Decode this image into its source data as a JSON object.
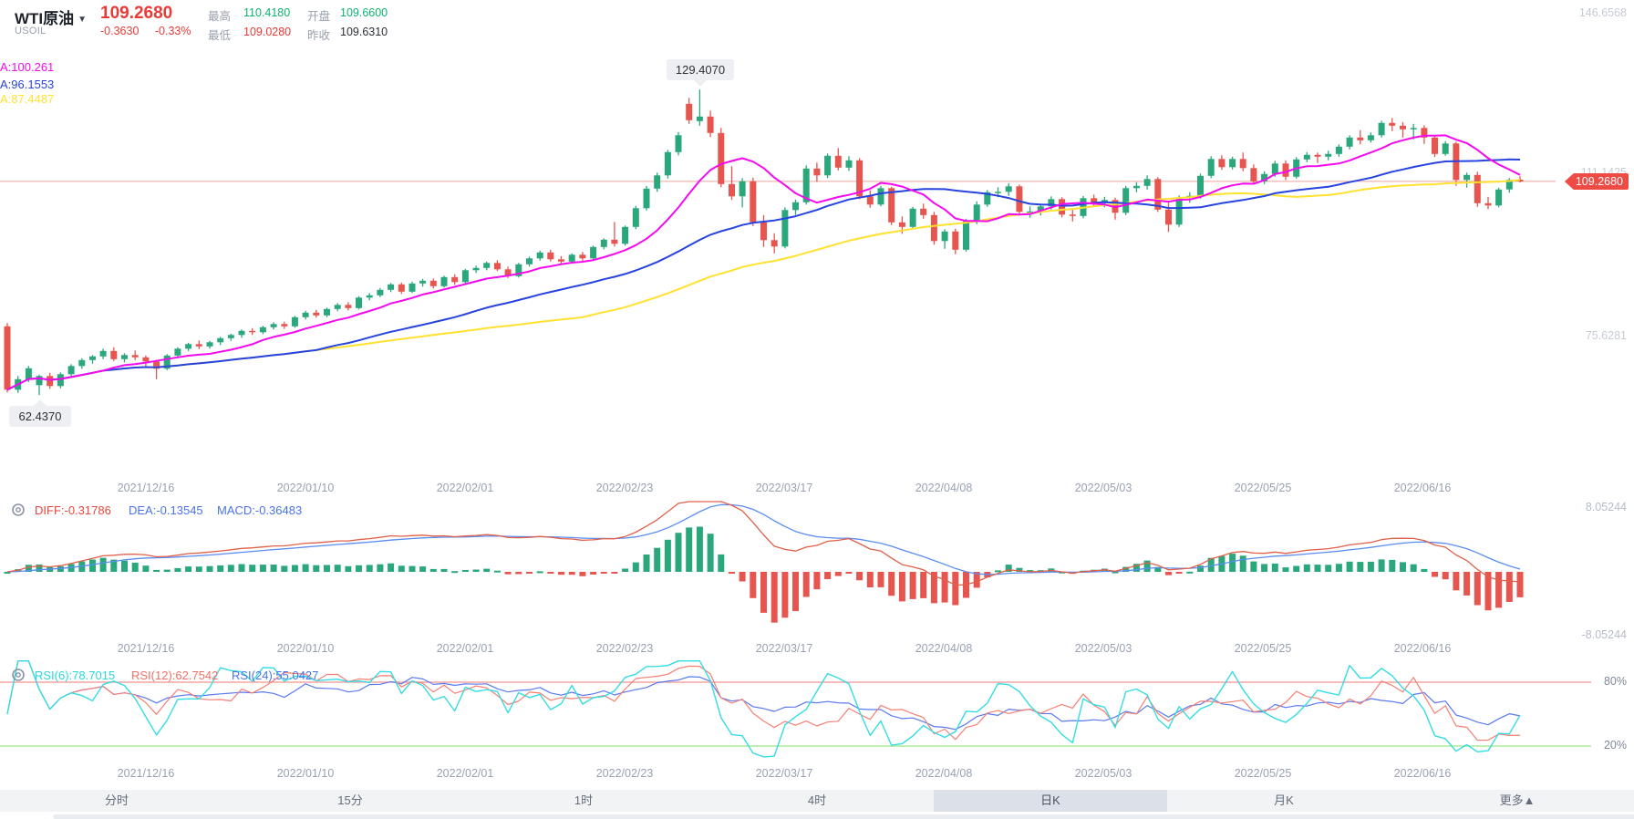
{
  "header": {
    "title": "WTI原油",
    "symbol": "USOIL",
    "price": "109.2680",
    "change": "-0.3630",
    "change_pct": "-0.33%",
    "stats": [
      {
        "label": "最高",
        "value": "110.4180",
        "tone": "green"
      },
      {
        "label": "最低",
        "value": "109.0280",
        "tone": "red"
      },
      {
        "label": "开盘",
        "value": "109.6600",
        "tone": "green"
      },
      {
        "label": "昨收",
        "value": "109.6310",
        "tone": "dark"
      }
    ]
  },
  "ma_labels": [
    {
      "text": "A:100.261",
      "color": "#f50af0"
    },
    {
      "text": "A:96.1553",
      "color": "#2743e0"
    },
    {
      "text": "A:87.4487",
      "color": "#ffe230"
    }
  ],
  "price_axis": {
    "top": "146.6568",
    "mid": "111.1425",
    "low": "75.6281",
    "badge": "109.2680"
  },
  "annotations": {
    "high": "129.4070",
    "low": "62.4370"
  },
  "macd_panel": {
    "diff_label": "DIFF:-0.31786",
    "dea_label": "DEA:-0.13545",
    "macd_label": "MACD:-0.36483",
    "axis_max": "8.05244",
    "axis_min": "-8.05244"
  },
  "rsi_panel": {
    "rsi6_label": "RSI(6):78.7015",
    "rsi12_label": "RSI(12):62.7542",
    "rsi24_label": "RSI(24):55.0427",
    "line_high": "80%",
    "line_low": "20%"
  },
  "dates": [
    "2021/12/16",
    "2022/01/10",
    "2022/02/01",
    "2022/02/23",
    "2022/03/17",
    "2022/04/08",
    "2022/05/03",
    "2022/05/25",
    "2022/06/16"
  ],
  "tabs": [
    {
      "label": "分时"
    },
    {
      "label": "15分"
    },
    {
      "label": "1时"
    },
    {
      "label": "4时"
    },
    {
      "label": "日K",
      "selected": true
    },
    {
      "label": "月K"
    },
    {
      "label": "更多▲"
    }
  ],
  "chart_data": {
    "type": "candlestick",
    "title": "WTI原油 USOIL 日K",
    "high_annotation": 129.407,
    "low_annotation": 62.437,
    "last_price": 109.268,
    "price_axis_refs": [
      146.6568,
      111.1425,
      75.6281
    ],
    "macd_axis": [
      8.05244,
      -8.05244
    ],
    "rsi_guides": [
      80,
      20
    ],
    "ma_periods": [
      10,
      30,
      55
    ],
    "colors": {
      "up": "#2aa77b",
      "down": "#e7554f",
      "ma_fast": "#f50af0",
      "ma_mid": "#2743e0",
      "ma_slow": "#ffe230",
      "diff": "#e0604a",
      "dea": "#5b8cf0",
      "rsi6": "#35dce4",
      "rsi12": "#f57f74",
      "rsi24": "#5b7af0",
      "price_line": "#f2a29c",
      "rsi_high_line": "#f2a6a2",
      "rsi_low_line": "#aee89e"
    },
    "candles": [
      [
        77.5,
        78.2,
        63.0,
        63.6
      ],
      [
        63.6,
        66.6,
        62.9,
        65.9
      ],
      [
        65.9,
        68.8,
        65.3,
        68.3
      ],
      [
        64.6,
        66.9,
        62.437,
        66.6
      ],
      [
        66.6,
        67.3,
        63.8,
        64.4
      ],
      [
        64.4,
        67.4,
        63.9,
        67.0
      ],
      [
        67.0,
        69.2,
        66.5,
        68.8
      ],
      [
        68.8,
        70.5,
        68.2,
        70.1
      ],
      [
        70.1,
        71.2,
        69.3,
        70.9
      ],
      [
        70.9,
        72.6,
        70.3,
        72.1
      ],
      [
        72.1,
        72.9,
        69.9,
        70.3
      ],
      [
        70.3,
        71.6,
        69.6,
        71.2
      ],
      [
        71.2,
        72.2,
        70.1,
        70.7
      ],
      [
        70.7,
        71.1,
        68.7,
        69.8
      ],
      [
        69.8,
        70.1,
        65.9,
        68.2
      ],
      [
        68.2,
        71.4,
        67.9,
        71.1
      ],
      [
        71.1,
        72.9,
        70.7,
        72.6
      ],
      [
        72.6,
        73.9,
        72.1,
        73.6
      ],
      [
        73.6,
        74.4,
        72.5,
        73.1
      ],
      [
        73.1,
        74.3,
        72.6,
        74.0
      ],
      [
        74.0,
        75.2,
        73.4,
        74.9
      ],
      [
        74.9,
        75.9,
        74.3,
        75.6
      ],
      [
        75.6,
        76.8,
        75.0,
        76.5
      ],
      [
        76.5,
        77.1,
        75.6,
        76.2
      ],
      [
        76.2,
        77.6,
        75.8,
        77.3
      ],
      [
        77.3,
        78.4,
        76.8,
        78.0
      ],
      [
        78.0,
        78.5,
        76.9,
        77.5
      ],
      [
        77.5,
        79.8,
        77.2,
        79.5
      ],
      [
        79.5,
        80.9,
        79.0,
        80.5
      ],
      [
        80.5,
        81.1,
        79.4,
        79.9
      ],
      [
        79.9,
        81.6,
        79.5,
        81.3
      ],
      [
        81.3,
        82.6,
        80.8,
        82.2
      ],
      [
        82.2,
        82.8,
        81.0,
        81.5
      ],
      [
        81.5,
        84.1,
        81.2,
        83.8
      ],
      [
        83.8,
        84.8,
        83.2,
        84.3
      ],
      [
        84.3,
        85.9,
        83.9,
        85.5
      ],
      [
        85.5,
        87.0,
        85.0,
        86.7
      ],
      [
        86.7,
        87.1,
        84.6,
        85.1
      ],
      [
        85.1,
        87.3,
        84.8,
        86.9
      ],
      [
        86.9,
        87.9,
        86.2,
        87.5
      ],
      [
        87.5,
        88.0,
        85.8,
        86.3
      ],
      [
        86.3,
        88.6,
        86.0,
        88.3
      ],
      [
        88.3,
        88.9,
        86.6,
        87.2
      ],
      [
        87.2,
        90.1,
        86.9,
        89.8
      ],
      [
        89.8,
        90.8,
        89.2,
        90.3
      ],
      [
        90.3,
        91.7,
        89.8,
        91.4
      ],
      [
        91.4,
        92.0,
        89.6,
        90.0
      ],
      [
        90.0,
        90.6,
        88.1,
        88.5
      ],
      [
        88.5,
        91.4,
        88.2,
        91.1
      ],
      [
        91.1,
        92.8,
        90.6,
        92.4
      ],
      [
        92.4,
        94.1,
        91.9,
        93.7
      ],
      [
        93.7,
        94.3,
        91.7,
        92.2
      ],
      [
        92.2,
        92.9,
        91.1,
        91.7
      ],
      [
        91.7,
        93.5,
        91.3,
        93.2
      ],
      [
        93.2,
        93.8,
        91.9,
        92.4
      ],
      [
        92.4,
        95.2,
        92.0,
        94.9
      ],
      [
        94.9,
        96.8,
        94.4,
        96.5
      ],
      [
        96.5,
        100.4,
        95.0,
        95.6
      ],
      [
        95.6,
        99.6,
        95.2,
        99.3
      ],
      [
        99.3,
        103.9,
        98.8,
        103.4
      ],
      [
        103.4,
        108.3,
        102.9,
        107.7
      ],
      [
        107.7,
        111.2,
        107.0,
        110.6
      ],
      [
        110.6,
        116.2,
        109.9,
        115.7
      ],
      [
        115.7,
        120.1,
        115.0,
        119.4
      ],
      [
        126.3,
        127.6,
        121.9,
        122.7
      ],
      [
        122.5,
        129.407,
        121.5,
        123.5
      ],
      [
        123.5,
        124.8,
        119.0,
        119.9
      ],
      [
        119.9,
        121.0,
        108.0,
        108.7
      ],
      [
        108.7,
        112.6,
        105.2,
        106.0
      ],
      [
        106.0,
        110.0,
        103.6,
        109.3
      ],
      [
        109.3,
        110.1,
        99.5,
        100.3
      ],
      [
        100.3,
        101.9,
        94.9,
        96.4
      ],
      [
        96.4,
        97.9,
        93.5,
        95.0
      ],
      [
        95.0,
        103.6,
        94.6,
        103.0
      ],
      [
        103.0,
        105.3,
        101.9,
        104.7
      ],
      [
        104.7,
        112.8,
        104.2,
        112.1
      ],
      [
        112.1,
        113.4,
        109.2,
        110.6
      ],
      [
        110.6,
        115.4,
        110.0,
        114.9
      ],
      [
        114.9,
        116.6,
        111.7,
        112.3
      ],
      [
        112.3,
        114.8,
        111.6,
        113.9
      ],
      [
        113.9,
        114.4,
        105.4,
        106.0
      ],
      [
        106.0,
        107.3,
        103.5,
        104.2
      ],
      [
        104.2,
        108.3,
        103.8,
        107.8
      ],
      [
        107.8,
        108.1,
        99.7,
        100.3
      ],
      [
        100.3,
        101.6,
        97.8,
        99.3
      ],
      [
        99.3,
        103.7,
        98.9,
        103.3
      ],
      [
        103.3,
        104.4,
        101.1,
        101.9
      ],
      [
        101.9,
        102.6,
        95.4,
        96.2
      ],
      [
        96.2,
        98.8,
        94.5,
        98.3
      ],
      [
        98.3,
        98.9,
        93.3,
        94.3
      ],
      [
        94.3,
        101.1,
        93.9,
        100.6
      ],
      [
        100.6,
        104.9,
        99.9,
        104.2
      ],
      [
        104.2,
        107.4,
        103.7,
        106.9
      ],
      [
        106.9,
        108.0,
        105.8,
        107.0
      ],
      [
        107.0,
        108.9,
        106.1,
        108.2
      ],
      [
        108.2,
        108.6,
        101.9,
        102.6
      ],
      [
        102.6,
        103.8,
        101.3,
        102.7
      ],
      [
        102.7,
        104.4,
        101.8,
        103.8
      ],
      [
        103.8,
        106.0,
        103.1,
        105.4
      ],
      [
        105.4,
        105.8,
        101.4,
        102.0
      ],
      [
        102.0,
        103.1,
        100.5,
        101.7
      ],
      [
        101.7,
        106.1,
        101.2,
        105.6
      ],
      [
        105.6,
        106.4,
        103.9,
        104.7
      ],
      [
        104.7,
        105.9,
        103.6,
        105.2
      ],
      [
        105.2,
        105.7,
        100.9,
        102.4
      ],
      [
        102.4,
        108.3,
        101.9,
        107.8
      ],
      [
        107.8,
        109.1,
        106.9,
        108.3
      ],
      [
        108.3,
        110.6,
        107.5,
        109.8
      ],
      [
        109.8,
        110.2,
        102.6,
        103.1
      ],
      [
        103.1,
        104.6,
        98.2,
        99.8
      ],
      [
        99.8,
        106.2,
        99.3,
        105.7
      ],
      [
        105.7,
        106.9,
        104.6,
        106.1
      ],
      [
        106.1,
        111.0,
        105.5,
        110.5
      ],
      [
        110.5,
        114.8,
        110.0,
        114.2
      ],
      [
        114.2,
        115.0,
        111.8,
        112.4
      ],
      [
        112.4,
        114.7,
        111.9,
        114.2
      ],
      [
        114.2,
        115.6,
        111.5,
        112.2
      ],
      [
        112.2,
        113.0,
        108.6,
        109.3
      ],
      [
        109.3,
        111.5,
        108.7,
        110.9
      ],
      [
        110.9,
        113.8,
        110.3,
        113.2
      ],
      [
        113.2,
        113.9,
        109.6,
        110.3
      ],
      [
        110.3,
        114.6,
        109.9,
        114.1
      ],
      [
        114.1,
        115.7,
        113.5,
        115.1
      ],
      [
        115.1,
        115.6,
        113.3,
        114.7
      ],
      [
        114.7,
        116.0,
        113.9,
        115.3
      ],
      [
        115.3,
        117.4,
        114.7,
        116.9
      ],
      [
        116.9,
        119.4,
        116.3,
        118.9
      ],
      [
        118.9,
        120.5,
        117.4,
        118.3
      ],
      [
        118.3,
        120.0,
        117.8,
        119.4
      ],
      [
        119.4,
        122.6,
        118.9,
        122.1
      ],
      [
        122.1,
        123.2,
        120.3,
        121.5
      ],
      [
        121.5,
        122.3,
        118.9,
        120.7
      ],
      [
        120.7,
        121.9,
        118.5,
        121.0
      ],
      [
        121.0,
        121.6,
        117.5,
        118.9
      ],
      [
        118.9,
        119.3,
        114.6,
        115.3
      ],
      [
        115.3,
        118.1,
        114.9,
        117.6
      ],
      [
        117.6,
        118.0,
        108.3,
        109.6
      ],
      [
        109.6,
        111.2,
        107.9,
        110.7
      ],
      [
        110.7,
        111.4,
        103.7,
        104.5
      ],
      [
        104.5,
        105.9,
        103.2,
        104.0
      ],
      [
        104.0,
        107.9,
        103.6,
        107.5
      ],
      [
        107.5,
        110.0,
        106.8,
        109.63
      ],
      [
        109.66,
        110.418,
        109.028,
        109.268
      ]
    ]
  }
}
